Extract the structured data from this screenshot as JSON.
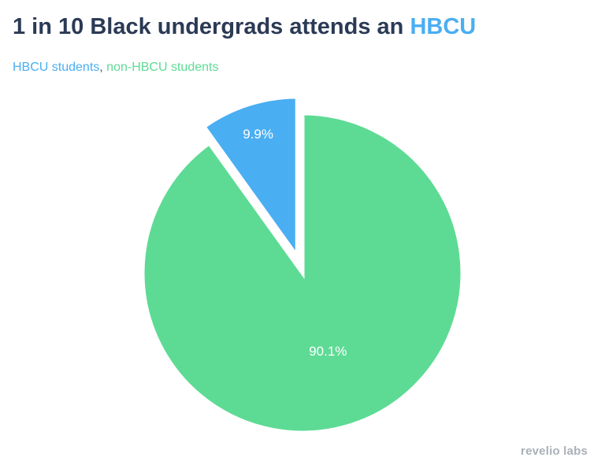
{
  "chart_data": {
    "type": "pie",
    "title_prefix": "1 in 10 Black undergrads attends an ",
    "title_highlight": "HBCU",
    "slices": [
      {
        "name": "HBCU students",
        "value": 9.9,
        "label": "9.9%",
        "color": "#4aaef2",
        "exploded": true
      },
      {
        "name": "non-HBCU students",
        "value": 90.1,
        "label": "90.1%",
        "color": "#5ddb94",
        "exploded": false
      }
    ],
    "legend_separator": ",",
    "legend_placement": "top-left"
  },
  "branding": {
    "text": "revelio labs"
  }
}
